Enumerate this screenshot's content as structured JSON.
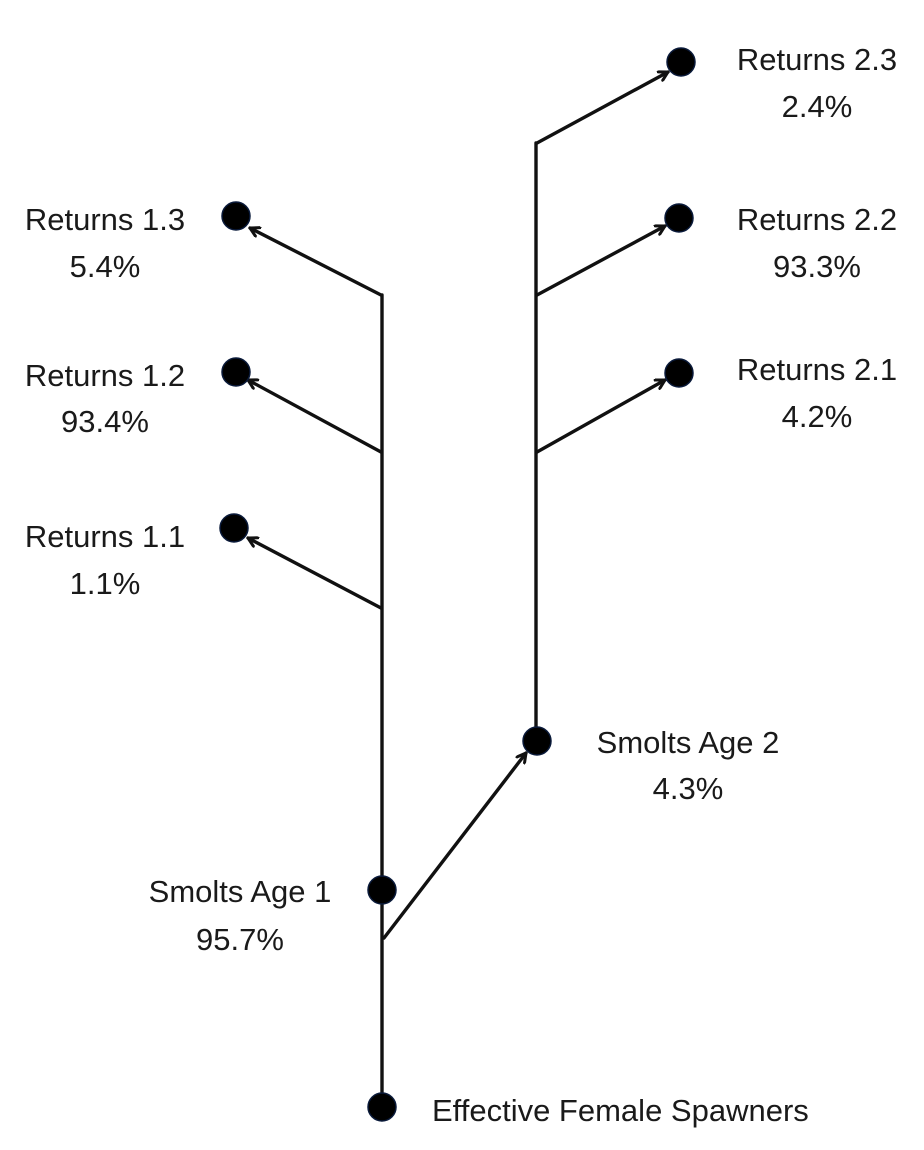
{
  "diagram": {
    "nodes": {
      "spawners": {
        "label": "Effective Female Spawners"
      },
      "smolts_age_1": {
        "label": "Smolts Age 1",
        "value": "95.7%"
      },
      "smolts_age_2": {
        "label": "Smolts Age 2",
        "value": "4.3%"
      },
      "returns_1_1": {
        "label": "Returns 1.1",
        "value": "1.1%"
      },
      "returns_1_2": {
        "label": "Returns 1.2",
        "value": "93.4%"
      },
      "returns_1_3": {
        "label": "Returns 1.3",
        "value": "5.4%"
      },
      "returns_2_1": {
        "label": "Returns 2.1",
        "value": "4.2%"
      },
      "returns_2_2": {
        "label": "Returns 2.2",
        "value": "93.3%"
      },
      "returns_2_3": {
        "label": "Returns 2.3",
        "value": "2.4%"
      }
    },
    "colors": {
      "line": "#111111",
      "node": "#000000",
      "text": "#1a1a1a"
    }
  }
}
